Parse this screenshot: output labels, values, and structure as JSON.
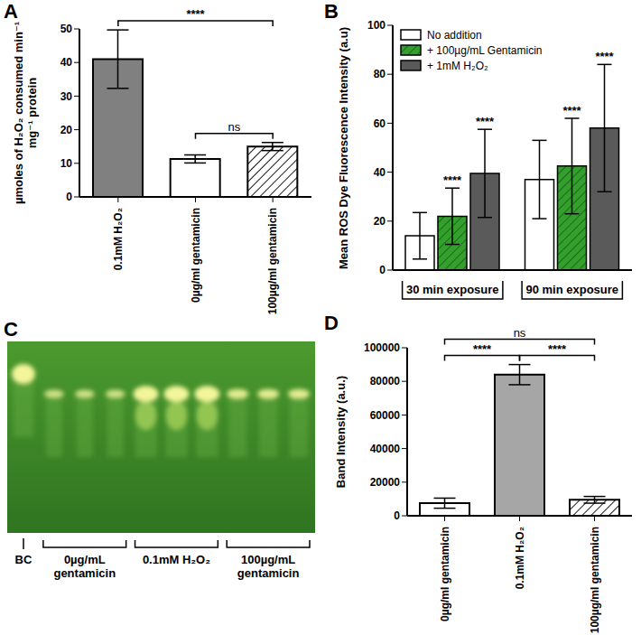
{
  "chart_data": [
    {
      "type": "bar",
      "title": "A",
      "y_label": "µmoles of H₂O₂ consumed min⁻¹ mg⁻¹ protein",
      "categories": [
        "0.1mM H₂O₂",
        "0µg/ml gentamicin",
        "100µg/ml gentamicin"
      ],
      "values": [
        41,
        11.3,
        15
      ],
      "errors": [
        8.7,
        1.2,
        1.2
      ],
      "colors": [
        "#808080",
        "#ffffff",
        "#ffffff"
      ],
      "ylim": [
        0,
        50
      ],
      "yticks": [
        0,
        10,
        20,
        30,
        40,
        50
      ],
      "annotations": [
        {
          "between": [
            "0.1mM H₂O₂",
            "100µg/ml gentamicin"
          ],
          "text": "****"
        },
        {
          "between": [
            "0µg/ml gentamicin",
            "100µg/ml gentamicin"
          ],
          "text": "ns"
        }
      ]
    },
    {
      "type": "grouped_bar",
      "title": "B",
      "y_label": "Mean ROS Dye Fluorescence Intensity (a.u)",
      "categories": [
        "30 min exposure",
        "90 min exposure"
      ],
      "series": [
        {
          "name": "No addition",
          "color": "#ffffff",
          "values": [
            14,
            37
          ],
          "errors": [
            9.5,
            16
          ]
        },
        {
          "name": "+ 100µg/mL Gentamicin",
          "color": "#33a02c",
          "values": [
            22,
            42.5
          ],
          "errors": [
            11.5,
            19.5
          ],
          "annotations": [
            "****",
            "****"
          ]
        },
        {
          "name": "+ 1mM H₂O₂",
          "color": "#5a5a5a",
          "values": [
            39.5,
            58
          ],
          "errors": [
            18,
            26
          ],
          "annotations": [
            "****",
            "****"
          ]
        }
      ],
      "ylim": [
        0,
        100
      ],
      "yticks": [
        0,
        20,
        40,
        60,
        80,
        100
      ],
      "legend": "upper left"
    },
    {
      "type": "gel",
      "title": "C",
      "groups": [
        {
          "label": "BC",
          "lanes": 1
        },
        {
          "label": "0µg/mL gentamicin",
          "lanes": 3
        },
        {
          "label": "0.1mM H₂O₂",
          "lanes": 3
        },
        {
          "label": "100µg/mL gentamicin",
          "lanes": 3
        }
      ]
    },
    {
      "type": "bar",
      "title": "D",
      "y_label": "Band Intensity (a.u.)",
      "categories": [
        "0µg/ml gentamicin",
        "0.1mM H₂O₂",
        "100µg/ml gentamicin"
      ],
      "values": [
        7500,
        84000,
        9500
      ],
      "errors": [
        3000,
        6000,
        2000
      ],
      "colors": [
        "#ffffff",
        "#a6a6a6",
        "#ffffff"
      ],
      "ylim": [
        0,
        100000
      ],
      "yticks": [
        0,
        20000,
        40000,
        60000,
        80000,
        100000
      ],
      "annotations": [
        {
          "between": [
            "0µg/ml gentamicin",
            "0.1mM H₂O₂"
          ],
          "text": "****"
        },
        {
          "between": [
            "0.1mM H₂O₂",
            "100µg/ml gentamicin"
          ],
          "text": "****"
        },
        {
          "between": [
            "0µg/ml gentamicin",
            "100µg/ml gentamicin"
          ],
          "text": "ns"
        }
      ]
    }
  ]
}
